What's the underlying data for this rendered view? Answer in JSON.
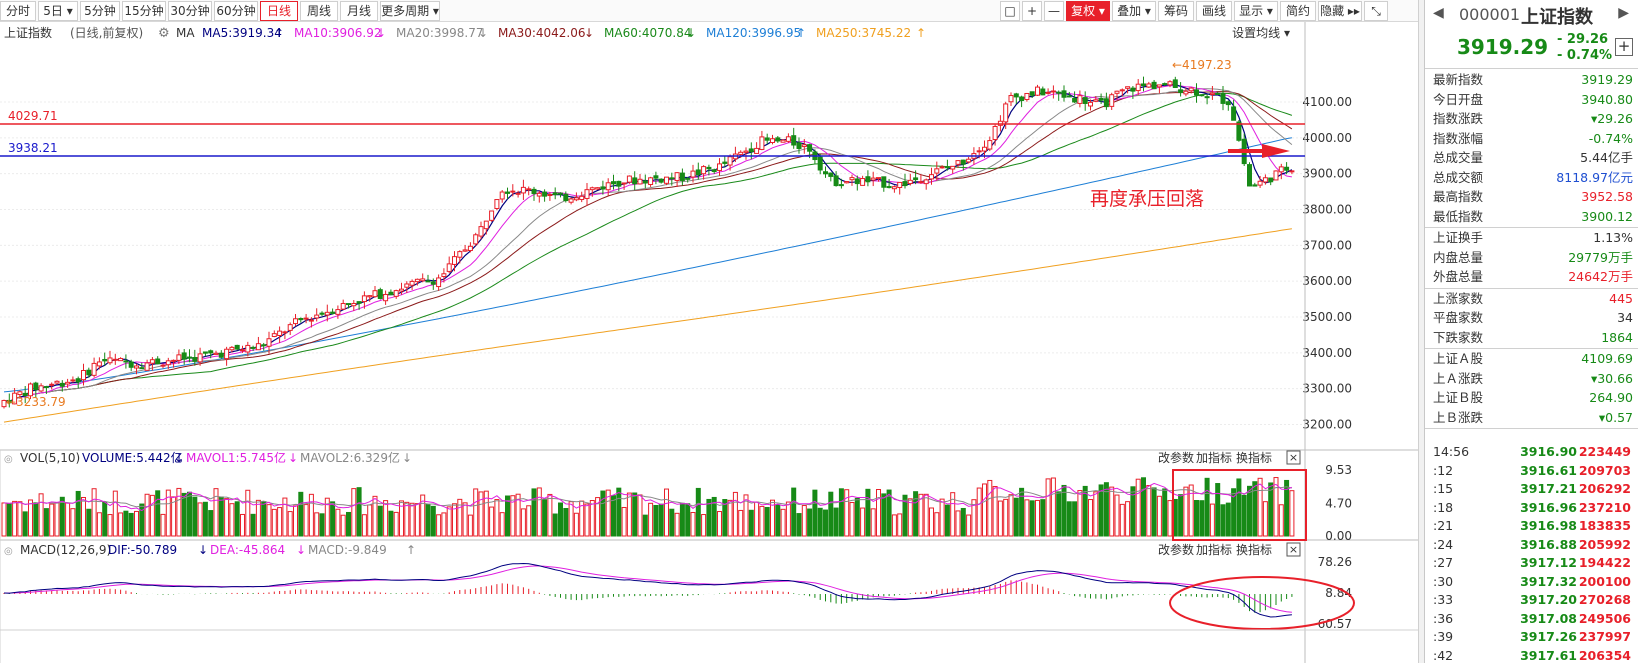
{
  "toolbar": {
    "items": [
      {
        "label": "分时",
        "state": ""
      },
      {
        "label": "5日 ▾",
        "state": ""
      },
      {
        "label": "5分钟",
        "state": ""
      },
      {
        "label": "15分钟",
        "state": ""
      },
      {
        "label": "30分钟",
        "state": ""
      },
      {
        "label": "60分钟",
        "state": ""
      },
      {
        "label": "日线",
        "state": "active"
      },
      {
        "label": "周线",
        "state": ""
      },
      {
        "label": "月线",
        "state": ""
      },
      {
        "label": "更多周期 ▾",
        "state": ""
      }
    ],
    "right_items": [
      {
        "label": "□",
        "state": ""
      },
      {
        "label": "+",
        "state": ""
      },
      {
        "label": "—",
        "state": ""
      },
      {
        "label": "复权 ▾",
        "state": "red"
      },
      {
        "label": "叠加 ▾",
        "state": ""
      },
      {
        "label": "筹码",
        "state": ""
      },
      {
        "label": "画线",
        "state": ""
      },
      {
        "label": "显示 ▾",
        "state": ""
      },
      {
        "label": "简约",
        "state": ""
      },
      {
        "label": "隐藏 ▸▸",
        "state": ""
      },
      {
        "label": "⤡",
        "state": ""
      }
    ]
  },
  "main_legend": {
    "name": "上证指数",
    "mode": "(日线,前复权)",
    "ma": "MA",
    "items": [
      {
        "text": "MA5:3919.34",
        "arrow": "↑",
        "color": "#000080"
      },
      {
        "text": "MA10:3906.92",
        "arrow": "↓",
        "color": "#e020e0"
      },
      {
        "text": "MA20:3998.77",
        "arrow": "↓",
        "color": "#888888"
      },
      {
        "text": "MA30:4042.06",
        "arrow": "↓",
        "color": "#8b1a1a"
      },
      {
        "text": "MA60:4070.84",
        "arrow": "↓",
        "color": "#1b8a1b"
      },
      {
        "text": "MA120:3996.95",
        "arrow": "↑",
        "color": "#1e7fd6"
      },
      {
        "text": "MA250:3745.22",
        "arrow": "↑",
        "color": "#f0a020"
      }
    ],
    "setting": "设置均线 ▾"
  },
  "price_axis": [
    "4100.00",
    "4000.00",
    "3900.00",
    "3800.00",
    "3700.00",
    "3600.00",
    "3500.00",
    "3400.00",
    "3300.00",
    "3200.00"
  ],
  "annotations": {
    "high": "4197.23",
    "low": "3233.79",
    "red_line": "4029.71",
    "blue_line": "3938.21",
    "note": "再度承压回落"
  },
  "vol_legend": {
    "name": "VOL(5,10)",
    "items": [
      {
        "text": "VOLUME:5.442亿",
        "arrow": "↓",
        "color": "#000080"
      },
      {
        "text": "MAVOL1:5.745亿",
        "arrow": "↓",
        "color": "#e020e0"
      },
      {
        "text": "MAVOL2:6.329亿",
        "arrow": "↓",
        "color": "#888888"
      }
    ],
    "buttons": [
      "改参数",
      "加指标",
      "换指标"
    ],
    "axis": [
      "9.53",
      "4.70",
      "0.00"
    ]
  },
  "macd_legend": {
    "name": "MACD(12,26,9)",
    "items": [
      {
        "text": "DIF:-50.789",
        "arrow": "↓",
        "color": "#000080"
      },
      {
        "text": "DEA:-45.864",
        "arrow": "↓",
        "color": "#e020e0"
      },
      {
        "text": "MACD:-9.849",
        "arrow": "↑",
        "color": "#888888"
      }
    ],
    "buttons": [
      "改参数",
      "加指标",
      "换指标"
    ],
    "axis": [
      "78.26",
      "8.84",
      "-60.57"
    ]
  },
  "quote": {
    "code": "000001",
    "name": "上证指数",
    "price": "3919.29",
    "change": "- 29.26",
    "change_pct": "- 0.74%",
    "rows": [
      {
        "k": "最新指数",
        "v": "3919.29",
        "c": "green"
      },
      {
        "k": "今日开盘",
        "v": "3940.80",
        "c": "green"
      },
      {
        "k": "指数涨跌",
        "v": "▾29.26",
        "c": "green"
      },
      {
        "k": "指数涨幅",
        "v": "-0.74%",
        "c": "green"
      },
      {
        "k": "总成交量",
        "v": "5.44亿手",
        "c": "black"
      },
      {
        "k": "总成交额",
        "v": "8118.97亿元",
        "c": "blue"
      },
      {
        "k": "最高指数",
        "v": "3952.58",
        "c": "red"
      },
      {
        "k": "最低指数",
        "v": "3900.12",
        "c": "green"
      }
    ],
    "rows2": [
      {
        "k": "上证换手",
        "v": "1.13%",
        "c": "black"
      },
      {
        "k": "内盘总量",
        "v": "29779万手",
        "c": "green"
      },
      {
        "k": "外盘总量",
        "v": "24642万手",
        "c": "red"
      }
    ],
    "rows3": [
      {
        "k": "上涨家数",
        "v": "445",
        "c": "red"
      },
      {
        "k": "平盘家数",
        "v": "34",
        "c": "black"
      },
      {
        "k": "下跌家数",
        "v": "1864",
        "c": "green"
      }
    ],
    "rows4": [
      {
        "k": "上证Ａ股",
        "v": "4109.69",
        "c": "green"
      },
      {
        "k": "上Ａ涨跌",
        "v": "▾30.66",
        "c": "green"
      },
      {
        "k": "上证Ｂ股",
        "v": "264.90",
        "c": "green"
      },
      {
        "k": "上Ｂ涨跌",
        "v": "▾0.57",
        "c": "green"
      }
    ],
    "ticks": [
      {
        "t": "14:56",
        "p": "3916.90",
        "q": "223449"
      },
      {
        "t": ":12",
        "p": "3916.61",
        "q": "209703"
      },
      {
        "t": ":15",
        "p": "3917.21",
        "q": "206292"
      },
      {
        "t": ":18",
        "p": "3916.96",
        "q": "237210"
      },
      {
        "t": ":21",
        "p": "3916.98",
        "q": "183835"
      },
      {
        "t": ":24",
        "p": "3916.88",
        "q": "205992"
      },
      {
        "t": ":27",
        "p": "3917.12",
        "q": "194422"
      },
      {
        "t": ":30",
        "p": "3917.32",
        "q": "200100"
      },
      {
        "t": ":33",
        "p": "3917.20",
        "q": "270268"
      },
      {
        "t": ":36",
        "p": "3917.08",
        "q": "249506"
      },
      {
        "t": ":39",
        "p": "3917.26",
        "q": "237997"
      },
      {
        "t": ":42",
        "p": "3917.61",
        "q": "206354"
      }
    ]
  },
  "colors": {
    "up": "#e8202a",
    "down": "#178a17",
    "ma5": "#000080",
    "ma10": "#e020e0",
    "ma20": "#888888",
    "ma30": "#8b1a1a",
    "ma60": "#1b8a1b",
    "ma120": "#1e7fd6",
    "ma250": "#f0a020"
  }
}
